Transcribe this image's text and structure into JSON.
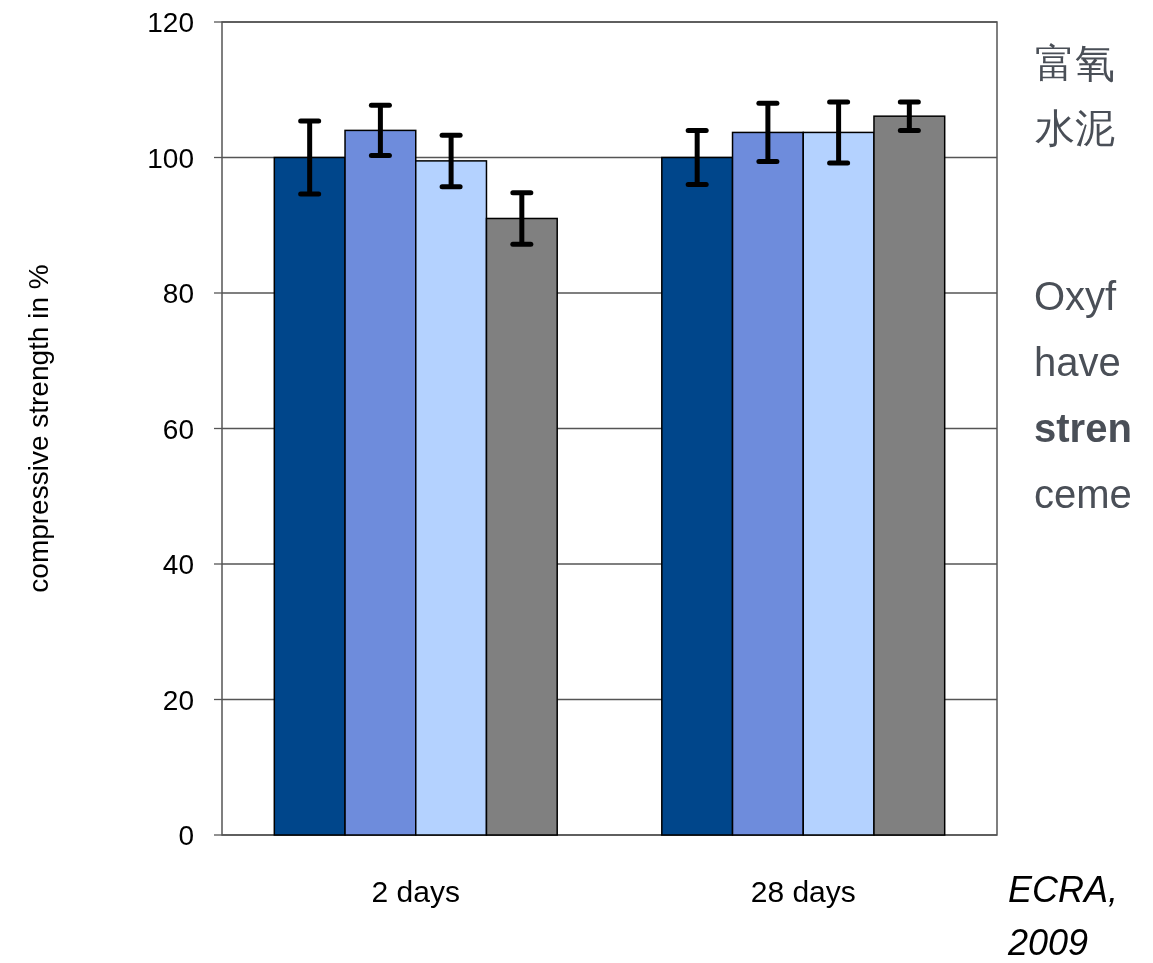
{
  "chart_data": {
    "type": "bar",
    "ylabel": "compressive strength in %",
    "categories": [
      "2 days",
      "28 days"
    ],
    "series": [
      {
        "color": "#00468b",
        "values": [
          100,
          100
        ],
        "errors": [
          5.4,
          4
        ]
      },
      {
        "color": "#6e8cdc",
        "values": [
          104,
          103.7
        ],
        "errors": [
          3.7,
          4.3
        ]
      },
      {
        "color": "#b4d2ff",
        "values": [
          99.5,
          103.7
        ],
        "errors": [
          3.8,
          4.5
        ]
      },
      {
        "color": "#808080",
        "values": [
          91,
          106.1
        ],
        "errors": [
          3.8,
          2.1
        ]
      }
    ],
    "ylim": [
      0,
      120
    ],
    "yticks": [
      0,
      20,
      40,
      60,
      80,
      100,
      120
    ],
    "grid": "y",
    "annotations": [
      "富氧",
      "水泥",
      "Oxyf",
      "have",
      "stren",
      "ceme",
      "ECRA,",
      "2009"
    ]
  }
}
